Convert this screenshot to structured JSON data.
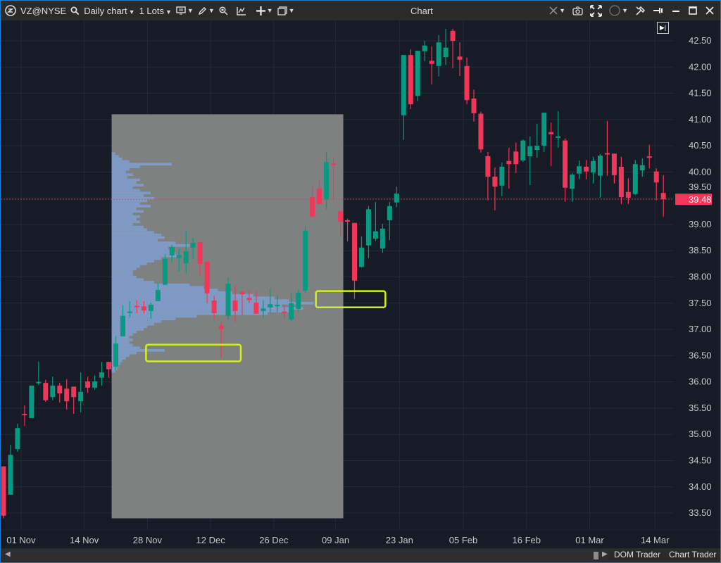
{
  "toolbar": {
    "symbol": "VZ@NYSE",
    "interval": "Daily chart",
    "lots": "1 Lots",
    "window_title": "Chart",
    "icons": [
      "app-logo-icon",
      "search-icon",
      "monitor-icon",
      "pencil-icon",
      "zoom-icon",
      "indicators-icon",
      "crosshair-icon",
      "window-icon",
      "link-icon",
      "camera-icon",
      "fullscreen-icon",
      "circle-icon",
      "tools-icon",
      "pin-icon",
      "minimize-icon",
      "maximize-icon",
      "close-icon"
    ]
  },
  "bottom": {
    "dom_trader": "DOM Trader",
    "chart_trader": "Chart Trader"
  },
  "colors": {
    "up": "#089981",
    "down": "#f23659",
    "background": "#161b26",
    "profile_zone": "#7f8080",
    "profile_bars": "#7f9cc8",
    "annotation": "#d4f01c"
  },
  "chart_data": {
    "type": "candlestick",
    "symbol": "VZ@NYSE",
    "y_ticks": [
      "42.50",
      "42.00",
      "41.50",
      "41.00",
      "40.50",
      "40.00",
      "39.50",
      "39.00",
      "38.50",
      "38.00",
      "37.50",
      "37.00",
      "36.50",
      "36.00",
      "35.50",
      "35.00",
      "34.50",
      "34.00",
      "33.50"
    ],
    "ylim": [
      33.3,
      42.9
    ],
    "x_ticks": [
      {
        "label": "01 Nov",
        "bar": 2.5
      },
      {
        "label": "14 Nov",
        "bar": 11.5
      },
      {
        "label": "28 Nov",
        "bar": 20.5
      },
      {
        "label": "12 Dec",
        "bar": 29.5
      },
      {
        "label": "26 Dec",
        "bar": 38.5
      },
      {
        "label": "09 Jan",
        "bar": 47.3
      },
      {
        "label": "23 Jan",
        "bar": 56.4
      },
      {
        "label": "05 Feb",
        "bar": 65.5
      },
      {
        "label": "16 Feb",
        "bar": 74.5
      },
      {
        "label": "01 Mar",
        "bar": 83.5
      },
      {
        "label": "14 Mar",
        "bar": 92.8
      }
    ],
    "last_price": "39.48",
    "ohlc": [
      [
        34.39,
        34.39,
        33.4,
        33.45
      ],
      [
        33.85,
        34.8,
        33.85,
        34.61
      ],
      [
        34.72,
        35.2,
        34.67,
        35.12
      ],
      [
        35.39,
        35.55,
        35.16,
        35.38
      ],
      [
        35.31,
        35.93,
        35.31,
        35.93
      ],
      [
        35.98,
        36.38,
        35.94,
        36.0
      ],
      [
        35.98,
        36.04,
        35.62,
        35.65
      ],
      [
        35.71,
        36.1,
        35.65,
        35.93
      ],
      [
        35.93,
        35.98,
        35.61,
        35.78
      ],
      [
        35.87,
        36.05,
        35.47,
        35.63
      ],
      [
        35.91,
        35.91,
        35.39,
        35.71
      ],
      [
        35.63,
        36.18,
        35.42,
        35.81
      ],
      [
        36.01,
        36.1,
        35.79,
        35.89
      ],
      [
        35.89,
        36.12,
        35.85,
        36.01
      ],
      [
        36.08,
        36.38,
        35.93,
        36.18
      ],
      [
        36.38,
        36.38,
        36.08,
        36.24
      ],
      [
        36.29,
        36.87,
        36.22,
        36.73
      ],
      [
        36.87,
        37.46,
        36.87,
        37.26
      ],
      [
        37.33,
        37.54,
        37.23,
        37.34
      ],
      [
        37.45,
        37.56,
        37.31,
        37.44
      ],
      [
        37.44,
        37.54,
        37.3,
        37.36
      ],
      [
        37.35,
        37.51,
        37.2,
        37.47
      ],
      [
        37.54,
        37.89,
        37.54,
        37.75
      ],
      [
        37.85,
        38.44,
        37.85,
        38.34
      ],
      [
        38.41,
        38.61,
        38.28,
        38.57
      ],
      [
        38.36,
        38.54,
        38.1,
        38.42
      ],
      [
        38.26,
        38.89,
        38.07,
        38.49
      ],
      [
        38.56,
        38.74,
        38.33,
        38.65
      ],
      [
        38.66,
        38.66,
        38.03,
        38.25
      ],
      [
        38.29,
        38.29,
        37.5,
        37.69
      ],
      [
        37.55,
        37.64,
        37.19,
        37.31
      ],
      [
        37.07,
        37.15,
        36.46,
        37.01
      ],
      [
        37.26,
        37.99,
        37.19,
        37.87
      ],
      [
        37.55,
        37.83,
        37.14,
        37.35
      ],
      [
        37.71,
        37.74,
        37.27,
        37.67
      ],
      [
        37.6,
        37.74,
        37.5,
        37.56
      ],
      [
        37.51,
        37.73,
        37.3,
        37.3
      ],
      [
        37.35,
        37.55,
        37.22,
        37.4
      ],
      [
        37.42,
        37.78,
        37.32,
        37.48
      ],
      [
        37.44,
        37.64,
        37.32,
        37.47
      ],
      [
        37.34,
        37.46,
        37.2,
        37.32
      ],
      [
        37.19,
        37.71,
        37.16,
        37.5
      ],
      [
        37.39,
        37.77,
        37.34,
        37.7
      ],
      [
        37.74,
        38.97,
        37.69,
        38.88
      ],
      [
        39.52,
        39.72,
        39.15,
        39.15
      ],
      [
        39.68,
        39.84,
        39.39,
        39.39
      ],
      [
        39.48,
        40.38,
        39.29,
        40.19
      ],
      [
        40.16,
        40.26,
        39.48,
        40.13
      ],
      [
        39.25,
        39.25,
        38.77,
        39.05
      ],
      [
        39.08,
        39.11,
        38.68,
        39.07
      ],
      [
        39.03,
        39.03,
        37.58,
        37.93
      ],
      [
        38.19,
        38.77,
        38.18,
        38.56
      ],
      [
        38.6,
        39.35,
        38.36,
        39.29
      ],
      [
        38.73,
        39.43,
        38.68,
        38.87
      ],
      [
        38.54,
        39.01,
        38.46,
        38.92
      ],
      [
        39.08,
        39.43,
        38.7,
        39.35
      ],
      [
        39.42,
        39.72,
        39.33,
        39.59
      ],
      [
        41.08,
        42.23,
        40.61,
        42.23
      ],
      [
        42.23,
        42.34,
        41.2,
        41.29
      ],
      [
        41.45,
        42.31,
        41.35,
        42.31
      ],
      [
        42.3,
        42.5,
        42.11,
        42.41
      ],
      [
        42.12,
        42.39,
        41.67,
        42.06
      ],
      [
        42.02,
        42.61,
        41.82,
        42.47
      ],
      [
        42.19,
        42.73,
        42.04,
        42.37
      ],
      [
        42.69,
        42.73,
        41.98,
        42.5
      ],
      [
        42.2,
        42.47,
        41.83,
        42.14
      ],
      [
        42.02,
        42.18,
        41.29,
        41.37
      ],
      [
        41.4,
        41.57,
        40.96,
        41.12
      ],
      [
        41.11,
        41.15,
        40.37,
        40.43
      ],
      [
        40.3,
        40.38,
        39.46,
        39.91
      ],
      [
        39.91,
        40.09,
        39.27,
        39.72
      ],
      [
        39.74,
        40.18,
        39.54,
        40.1
      ],
      [
        40.21,
        40.46,
        39.68,
        40.15
      ],
      [
        40.39,
        40.56,
        39.98,
        40.15
      ],
      [
        40.22,
        40.62,
        40.19,
        40.6
      ],
      [
        40.3,
        40.68,
        39.75,
        40.49
      ],
      [
        40.42,
        40.92,
        40.27,
        40.5
      ],
      [
        40.5,
        41.13,
        40.38,
        41.13
      ],
      [
        40.76,
        40.94,
        40.11,
        40.72
      ],
      [
        40.65,
        41.16,
        40.46,
        40.68
      ],
      [
        40.6,
        40.64,
        39.43,
        39.7
      ],
      [
        39.68,
        39.98,
        39.43,
        39.95
      ],
      [
        39.97,
        40.22,
        39.87,
        40.11
      ],
      [
        40.1,
        40.23,
        39.86,
        40.01
      ],
      [
        39.99,
        40.29,
        39.78,
        40.21
      ],
      [
        39.93,
        40.34,
        39.51,
        40.31
      ],
      [
        40.36,
        40.97,
        39.93,
        40.35
      ],
      [
        40.35,
        40.35,
        39.78,
        39.94
      ],
      [
        40.1,
        40.29,
        39.39,
        39.52
      ],
      [
        39.62,
        39.88,
        39.39,
        39.51
      ],
      [
        39.58,
        40.23,
        39.56,
        40.15
      ],
      [
        40.03,
        40.26,
        39.91,
        40.13
      ],
      [
        40.3,
        40.52,
        40.07,
        40.27
      ],
      [
        40.01,
        40.07,
        39.46,
        39.8
      ],
      [
        39.6,
        39.94,
        39.15,
        39.48
      ]
    ],
    "volume_profile": {
      "from_bar": 15.4,
      "to_bar": 48.4,
      "price_top": 41.1,
      "price_bottom": 33.4,
      "level_high": 40.35,
      "level_step": 0.05,
      "relative_volume": [
        5,
        10,
        15,
        25,
        85,
        40,
        25,
        20,
        30,
        22,
        40,
        35,
        45,
        30,
        40,
        55,
        45,
        60,
        50,
        40,
        55,
        35,
        45,
        30,
        40,
        35,
        40,
        30,
        45,
        50,
        60,
        70,
        75,
        65,
        90,
        110,
        80,
        85,
        90,
        95,
        70,
        60,
        50,
        40,
        35,
        30,
        30,
        35,
        45,
        60,
        110,
        130,
        150,
        170,
        200,
        230,
        250,
        285,
        240,
        270,
        250,
        220,
        120,
        90,
        70,
        60,
        50,
        45,
        35,
        30,
        25,
        30,
        25,
        30,
        40,
        75,
        35,
        25,
        20,
        15,
        12,
        10,
        8,
        5
      ]
    },
    "annotations": [
      {
        "type": "rectangle",
        "price_top": 36.71,
        "price_bottom": 36.39,
        "from_bar": 20.3,
        "to_bar": 33.8
      },
      {
        "type": "rectangle",
        "price_top": 37.73,
        "price_bottom": 37.42,
        "from_bar": 44.5,
        "to_bar": 54.4
      }
    ]
  }
}
